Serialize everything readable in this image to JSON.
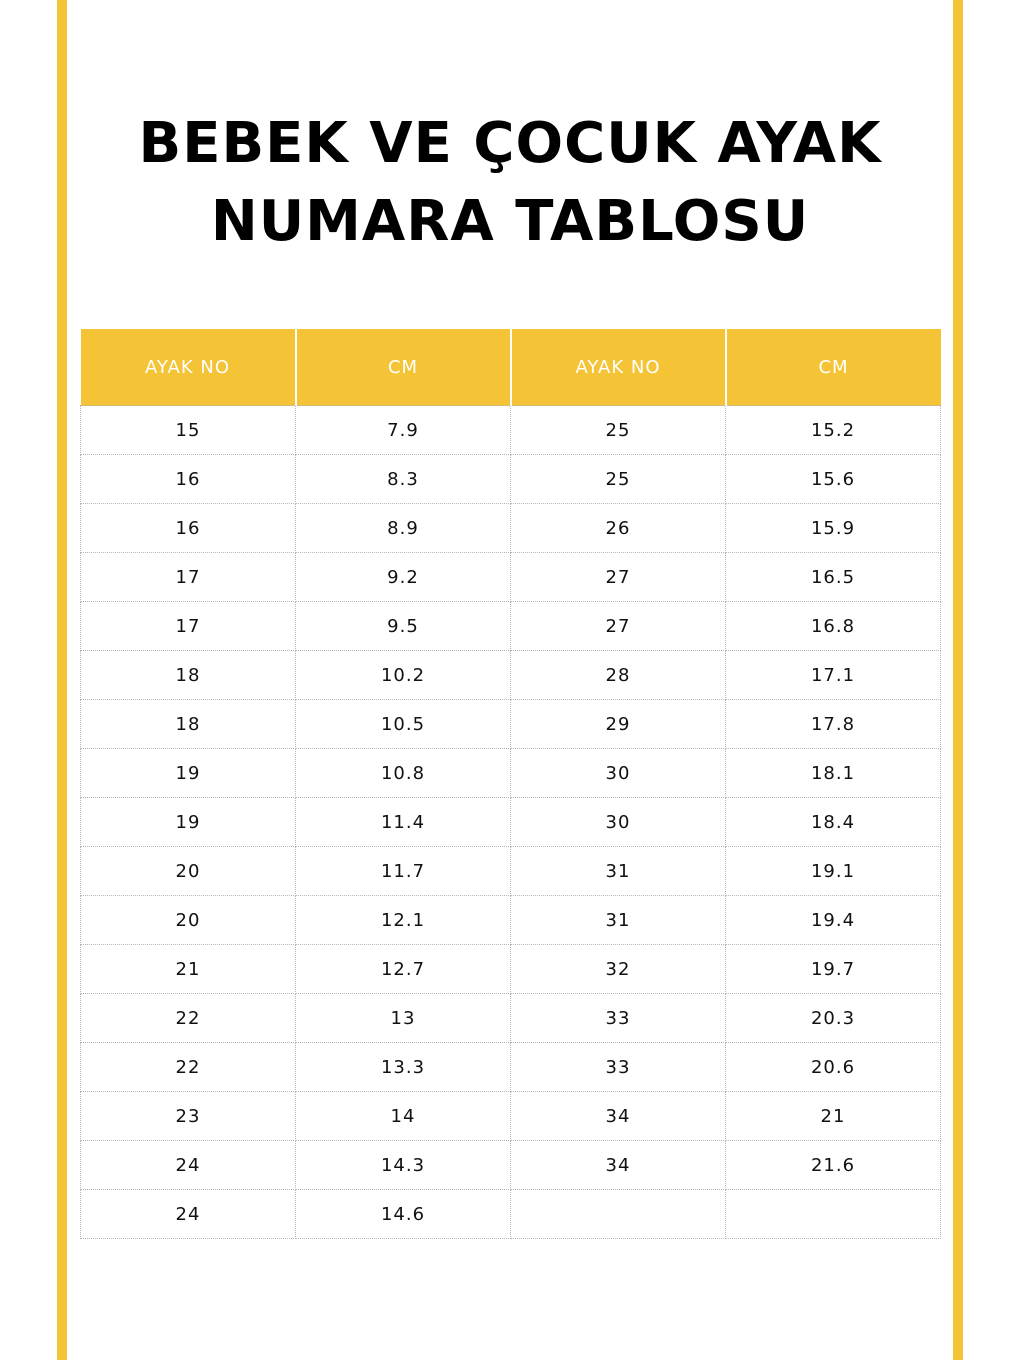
{
  "title_line1": "BEBEK VE ÇOCUK AYAK",
  "title_line2": "NUMARA TABLOSU",
  "accent_color": "#F4C436",
  "headers": [
    "AYAK NO",
    "CM",
    "AYAK NO",
    "CM"
  ],
  "rows": [
    [
      "15",
      "7.9",
      "25",
      "15.2"
    ],
    [
      "16",
      "8.3",
      "25",
      "15.6"
    ],
    [
      "16",
      "8.9",
      "26",
      "15.9"
    ],
    [
      "17",
      "9.2",
      "27",
      "16.5"
    ],
    [
      "17",
      "9.5",
      "27",
      "16.8"
    ],
    [
      "18",
      "10.2",
      "28",
      "17.1"
    ],
    [
      "18",
      "10.5",
      "29",
      "17.8"
    ],
    [
      "19",
      "10.8",
      "30",
      "18.1"
    ],
    [
      "19",
      "11.4",
      "30",
      "18.4"
    ],
    [
      "20",
      "11.7",
      "31",
      "19.1"
    ],
    [
      "20",
      "12.1",
      "31",
      "19.4"
    ],
    [
      "21",
      "12.7",
      "32",
      "19.7"
    ],
    [
      "22",
      "13",
      "33",
      "20.3"
    ],
    [
      "22",
      "13.3",
      "33",
      "20.6"
    ],
    [
      "23",
      "14",
      "34",
      "21"
    ],
    [
      "24",
      "14.3",
      "34",
      "21.6"
    ],
    [
      "24",
      "14.6",
      "",
      ""
    ]
  ]
}
